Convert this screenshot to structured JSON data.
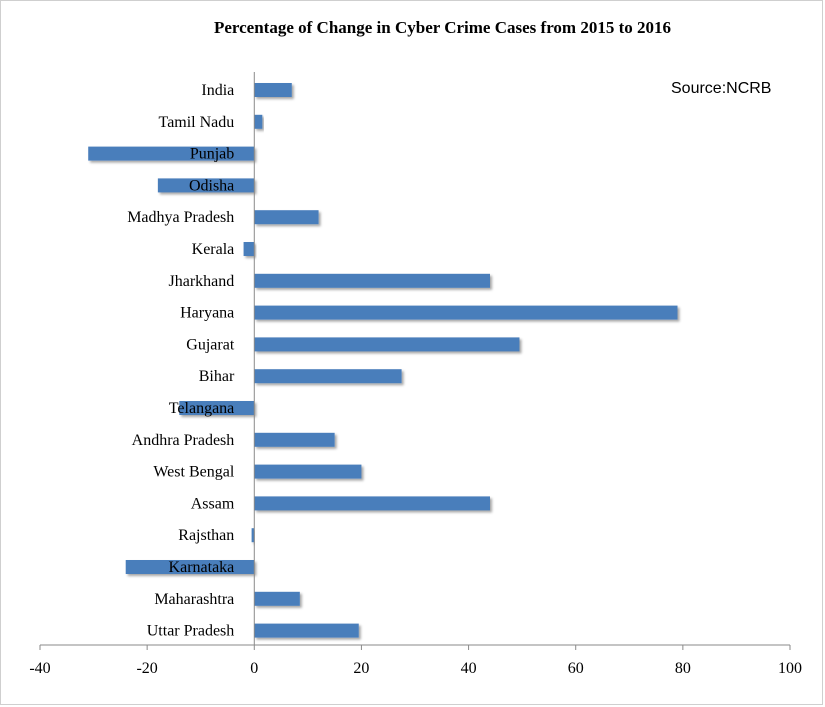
{
  "chart_data": {
    "type": "bar",
    "orientation": "horizontal",
    "title": "Percentage of Change in Cyber Crime Cases from 2015 to 2016",
    "annotation": "Source:NCRB",
    "categories": [
      "India",
      "Tamil Nadu",
      "Punjab",
      "Odisha",
      "Madhya Pradesh",
      "Kerala",
      "Jharkhand",
      "Haryana",
      "Gujarat",
      "Bihar",
      "Telangana",
      "Andhra Pradesh",
      "West Bengal",
      "Assam",
      "Rajsthan",
      "Karnataka",
      "Maharashtra",
      "Uttar Pradesh"
    ],
    "values": [
      7,
      1.5,
      -31,
      -18,
      12,
      -2,
      44,
      79,
      49.5,
      27.5,
      -14,
      15,
      20,
      44,
      -0.5,
      -24,
      8.5,
      19.5
    ],
    "xlim": [
      -40,
      100
    ],
    "xticks": [
      -40,
      -20,
      0,
      20,
      40,
      60,
      80,
      100
    ],
    "bar_color": "#4a7ebb",
    "grid": false,
    "legend": "none"
  }
}
